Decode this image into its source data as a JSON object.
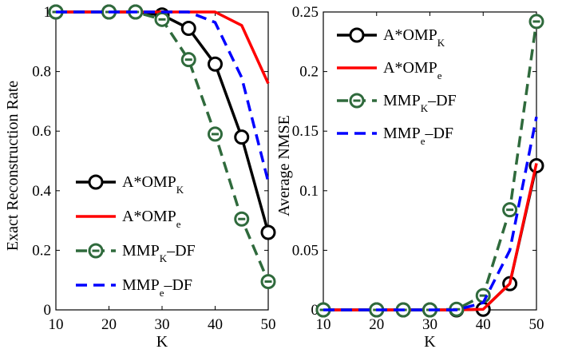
{
  "chart_data": [
    {
      "type": "line",
      "xlabel": "K",
      "ylabel": "Exact Reconstruction Rate",
      "xlim": [
        10,
        50
      ],
      "ylim": [
        0,
        1
      ],
      "xticks": [
        "10",
        "20",
        "30",
        "40",
        "50"
      ],
      "yticks": [
        "0",
        "0.2",
        "0.4",
        "0.6",
        "0.8",
        "1"
      ],
      "grid": false,
      "legend_position": "lower-left",
      "series": [
        {
          "name": "A*OMP_K",
          "legend_main": "A*OMP",
          "legend_sub": "K",
          "legend_suffix": "",
          "color": "#000000",
          "dash": "solid",
          "marker": "circle",
          "x": [
            10,
            20,
            25,
            30,
            35,
            40,
            45,
            50
          ],
          "y": [
            1.0,
            1.0,
            1.0,
            0.99,
            0.945,
            0.825,
            0.58,
            0.26
          ]
        },
        {
          "name": "A*OMP_e",
          "legend_main": "A*OMP",
          "legend_sub": "e",
          "legend_suffix": "",
          "color": "#ff0000",
          "dash": "solid",
          "marker": "none",
          "x": [
            10,
            20,
            25,
            30,
            35,
            40,
            45,
            50
          ],
          "y": [
            1.0,
            1.0,
            1.0,
            1.0,
            1.0,
            1.0,
            0.955,
            0.76
          ]
        },
        {
          "name": "MMP_K-DF",
          "legend_main": "MMP",
          "legend_sub": "K",
          "legend_suffix": "–DF",
          "color": "#2f6a3c",
          "dash": "dashed",
          "marker": "circle-dot",
          "x": [
            10,
            20,
            25,
            30,
            35,
            40,
            45,
            50
          ],
          "y": [
            1.0,
            1.0,
            1.0,
            0.975,
            0.84,
            0.59,
            0.305,
            0.095
          ]
        },
        {
          "name": "MMP_e-DF",
          "legend_main": "MMP",
          "legend_sub": "e",
          "legend_suffix": "–DF",
          "color": "#0000ff",
          "dash": "dashed",
          "marker": "none",
          "x": [
            10,
            20,
            25,
            30,
            35,
            40,
            45,
            50
          ],
          "y": [
            1.0,
            1.0,
            1.0,
            1.0,
            1.0,
            0.965,
            0.78,
            0.43
          ]
        }
      ]
    },
    {
      "type": "line",
      "xlabel": "K",
      "ylabel": "Average NMSE",
      "xlim": [
        10,
        50
      ],
      "ylim": [
        0,
        0.25
      ],
      "xticks": [
        "10",
        "20",
        "30",
        "40",
        "50"
      ],
      "yticks": [
        "0",
        "0.05",
        "0.1",
        "0.15",
        "0.2",
        "0.25"
      ],
      "grid": false,
      "legend_position": "upper-left",
      "series": [
        {
          "name": "A*OMP_K",
          "legend_main": "A*OMP",
          "legend_sub": "K",
          "legend_suffix": "",
          "color": "#000000",
          "dash": "solid",
          "marker": "circle",
          "x": [
            10,
            20,
            25,
            30,
            35,
            40,
            45,
            50
          ],
          "y": [
            0,
            0,
            0,
            0,
            0,
            0.0005,
            0.022,
            0.121
          ]
        },
        {
          "name": "A*OMP_e",
          "legend_main": "A*OMP",
          "legend_sub": "e",
          "legend_suffix": "",
          "color": "#ff0000",
          "dash": "solid",
          "marker": "none",
          "x": [
            10,
            20,
            25,
            30,
            35,
            40,
            45,
            50
          ],
          "y": [
            0,
            0,
            0,
            0,
            0,
            0.0005,
            0.022,
            0.123
          ]
        },
        {
          "name": "MMP_K-DF",
          "legend_main": "MMP",
          "legend_sub": "K",
          "legend_suffix": "–DF",
          "color": "#2f6a3c",
          "dash": "dashed",
          "marker": "circle-dot",
          "x": [
            10,
            20,
            25,
            30,
            35,
            40,
            45,
            50
          ],
          "y": [
            0,
            0,
            0,
            0,
            0.0005,
            0.012,
            0.084,
            0.242
          ]
        },
        {
          "name": "MMP_e-DF",
          "legend_main": "MMP",
          "legend_sub": "e",
          "legend_suffix": "–DF",
          "color": "#0000ff",
          "dash": "dashed",
          "marker": "none",
          "x": [
            10,
            20,
            25,
            30,
            35,
            40,
            45,
            50
          ],
          "y": [
            0,
            0,
            0,
            0,
            0,
            0.006,
            0.05,
            0.162
          ]
        }
      ]
    }
  ]
}
